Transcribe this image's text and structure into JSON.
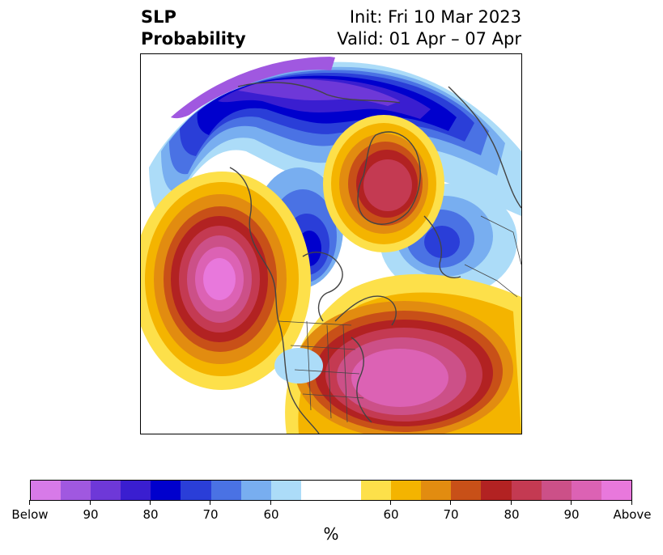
{
  "title": {
    "left_line1": "SLP",
    "left_line2": "Probability",
    "right_line1": "Init: Fri 10 Mar 2023",
    "right_line2": "Valid: 01 Apr – 07 Apr"
  },
  "map": {
    "projection": "north-polar-stereographic",
    "background": "#ffffff",
    "coastline_color": "#444444"
  },
  "colorbar": {
    "unit_label": "%",
    "colors": [
      "#d77ae8",
      "#a058e0",
      "#6e38d8",
      "#3a1ed0",
      "#0000cd",
      "#2a3ed8",
      "#4a72e4",
      "#78aef0",
      "#acdcf8",
      "#ffffff",
      "#fde04a",
      "#f4b400",
      "#e28c10",
      "#c85018",
      "#b22222",
      "#c43a52",
      "#cc5088",
      "#dc62b4",
      "#e878dc"
    ],
    "tick_labels": [
      "Below",
      "90",
      "80",
      "70",
      "60",
      "60",
      "70",
      "80",
      "90",
      "Above"
    ]
  },
  "below_normal_colors": {
    "c90": "#a058e0",
    "c85": "#6e38d8",
    "c80": "#3a1ed0",
    "c75": "#0000cd",
    "c70": "#2a3ed8",
    "c65": "#4a72e4",
    "c60": "#78aef0",
    "c55": "#acdcf8"
  },
  "above_normal_colors": {
    "c55": "#fde04a",
    "c60": "#f4b400",
    "c65": "#e28c10",
    "c70": "#c85018",
    "c75": "#b22222",
    "c80": "#c43a52",
    "c85": "#cc5088",
    "c90": "#dc62b4",
    "c95": "#e878dc"
  }
}
